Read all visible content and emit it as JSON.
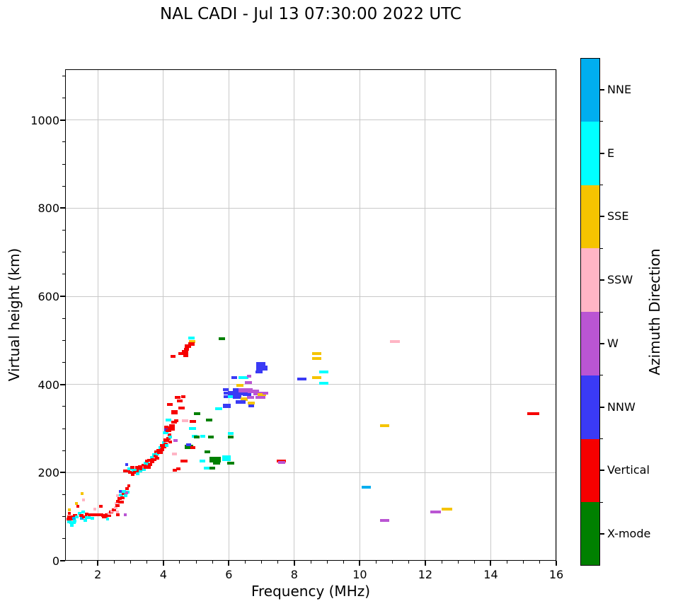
{
  "chart_data": {
    "type": "scatter",
    "title": "NAL CADI - Jul 13 07:30:00 2022 UTC",
    "xlabel": "Frequency (MHz)",
    "ylabel": "Virtual height (km)",
    "xlim": [
      1,
      16
    ],
    "ylim": [
      0,
      1115
    ],
    "x_major_ticks": [
      2,
      4,
      6,
      8,
      10,
      12,
      14,
      16
    ],
    "x_minor_step": 0.5,
    "y_major_ticks": [
      0,
      200,
      400,
      600,
      800,
      1000
    ],
    "y_minor_step": 50,
    "grid": true,
    "grid_color": "#c9c9c9",
    "colorbar": {
      "label": "Azimuth Direction",
      "categories": [
        {
          "key": "x",
          "label": "X-mode",
          "color": "#008000"
        },
        {
          "key": "v",
          "label": "Vertical",
          "color": "#f60000"
        },
        {
          "key": "nnw",
          "label": "NNW",
          "color": "#3a3af5"
        },
        {
          "key": "w",
          "label": "W",
          "color": "#ba55d3"
        },
        {
          "key": "ssw",
          "label": "SSW",
          "color": "#ffb5c5"
        },
        {
          "key": "sse",
          "label": "SSE",
          "color": "#f5c400"
        },
        {
          "key": "e",
          "label": "E",
          "color": "#00ffff"
        },
        {
          "key": "nne",
          "label": "NNE",
          "color": "#00aeef"
        }
      ]
    },
    "points": [
      [
        1.14,
        115,
        "sse",
        4
      ],
      [
        1.14,
        107,
        "v",
        4
      ],
      [
        1.16,
        100,
        "v",
        8
      ],
      [
        1.14,
        94,
        "v",
        9
      ],
      [
        1.12,
        88,
        "e",
        6
      ],
      [
        1.22,
        86,
        "e",
        9
      ],
      [
        1.3,
        90,
        "e",
        5
      ],
      [
        1.28,
        96,
        "nne",
        5
      ],
      [
        1.3,
        103,
        "v",
        6
      ],
      [
        1.36,
        99,
        "e",
        5
      ],
      [
        1.35,
        130,
        "sse",
        4
      ],
      [
        1.38,
        124,
        "v",
        4
      ],
      [
        1.44,
        107,
        "e",
        5
      ],
      [
        1.5,
        103,
        "v",
        6
      ],
      [
        1.5,
        96,
        "nne",
        5
      ],
      [
        1.52,
        152,
        "sse",
        4
      ],
      [
        1.55,
        110,
        "e",
        5
      ],
      [
        1.57,
        138,
        "ssw",
        4
      ],
      [
        1.6,
        100,
        "v",
        7
      ],
      [
        1.62,
        92,
        "e",
        5
      ],
      [
        1.66,
        106,
        "v",
        5
      ],
      [
        1.7,
        98,
        "e",
        8
      ],
      [
        1.74,
        104,
        "v",
        5
      ],
      [
        1.8,
        105,
        "v",
        10
      ],
      [
        1.84,
        96,
        "e",
        5
      ],
      [
        1.9,
        117,
        "ssw",
        4
      ],
      [
        1.94,
        105,
        "v",
        12
      ],
      [
        2.05,
        104,
        "v",
        10
      ],
      [
        2.1,
        123,
        "v",
        5
      ],
      [
        2.16,
        102,
        "v",
        6
      ],
      [
        2.22,
        100,
        "v",
        8
      ],
      [
        2.28,
        104,
        "v",
        6
      ],
      [
        2.33,
        103,
        "v",
        6
      ],
      [
        2.36,
        107,
        "ssw",
        5
      ],
      [
        2.4,
        110,
        "v",
        6
      ],
      [
        2.44,
        112,
        "ssw",
        5
      ],
      [
        2.5,
        115,
        "v",
        6
      ],
      [
        2.54,
        120,
        "ssw",
        5
      ],
      [
        2.56,
        130,
        "ssw",
        5
      ],
      [
        2.6,
        111,
        "ssw",
        4
      ],
      [
        2.6,
        125,
        "v",
        6
      ],
      [
        2.62,
        135,
        "v",
        5
      ],
      [
        2.66,
        141,
        "v",
        6
      ],
      [
        2.6,
        147,
        "ssw",
        4
      ],
      [
        2.7,
        133,
        "v",
        8
      ],
      [
        2.76,
        143,
        "v",
        6
      ],
      [
        2.7,
        150,
        "e",
        6
      ],
      [
        2.78,
        152,
        "v",
        5
      ],
      [
        2.84,
        105,
        "w",
        4
      ],
      [
        2.84,
        148,
        "e",
        5
      ],
      [
        2.88,
        156,
        "e",
        8
      ],
      [
        2.76,
        158,
        "e",
        10
      ],
      [
        2.6,
        104,
        "v",
        5
      ],
      [
        2.3,
        95,
        "e",
        4
      ],
      [
        1.2,
        80,
        "e",
        5
      ],
      [
        2.68,
        157,
        "nnw",
        4
      ],
      [
        2.9,
        163,
        "v",
        5
      ],
      [
        2.94,
        170,
        "v",
        4
      ],
      [
        2.89,
        218,
        "nnw",
        4
      ],
      [
        2.88,
        203,
        "v",
        10
      ],
      [
        2.96,
        208,
        "e",
        6
      ],
      [
        3.0,
        200,
        "v",
        8
      ],
      [
        3.06,
        211,
        "v",
        6
      ],
      [
        3.06,
        195,
        "v",
        5
      ],
      [
        3.12,
        206,
        "e",
        8
      ],
      [
        3.16,
        200,
        "v",
        8
      ],
      [
        3.2,
        211,
        "v",
        6
      ],
      [
        3.22,
        198,
        "e",
        5
      ],
      [
        3.26,
        205,
        "v",
        8
      ],
      [
        3.3,
        213,
        "v",
        6
      ],
      [
        3.3,
        203,
        "e",
        5
      ],
      [
        3.36,
        208,
        "v",
        8
      ],
      [
        3.4,
        216,
        "v",
        6
      ],
      [
        3.42,
        207,
        "e",
        5
      ],
      [
        3.46,
        222,
        "e",
        6
      ],
      [
        3.5,
        214,
        "v",
        10,
        6
      ],
      [
        3.5,
        226,
        "v",
        5
      ],
      [
        3.56,
        220,
        "e",
        6
      ],
      [
        3.6,
        228,
        "v",
        8
      ],
      [
        3.6,
        218,
        "v",
        6
      ],
      [
        3.64,
        235,
        "e",
        5
      ],
      [
        3.66,
        225,
        "v",
        6
      ],
      [
        3.7,
        230,
        "v",
        8
      ],
      [
        3.72,
        240,
        "e",
        5
      ],
      [
        3.76,
        238,
        "v",
        6
      ],
      [
        3.78,
        247,
        "v",
        5
      ],
      [
        3.8,
        232,
        "v",
        6
      ],
      [
        3.82,
        243,
        "e",
        5
      ],
      [
        3.86,
        250,
        "v",
        6
      ],
      [
        3.9,
        245,
        "v",
        8
      ],
      [
        3.9,
        256,
        "e",
        5
      ],
      [
        3.96,
        252,
        "v",
        6
      ],
      [
        3.96,
        262,
        "v",
        5
      ],
      [
        4.0,
        258,
        "v",
        8
      ],
      [
        4.02,
        268,
        "e",
        5
      ],
      [
        4.06,
        265,
        "v",
        6
      ],
      [
        4.06,
        275,
        "v",
        5
      ],
      [
        4.1,
        272,
        "v",
        8
      ],
      [
        4.1,
        262,
        "e",
        5
      ],
      [
        4.16,
        278,
        "v",
        6
      ],
      [
        4.18,
        285,
        "v",
        5
      ],
      [
        4.2,
        270,
        "v",
        5
      ],
      [
        4.22,
        280,
        "e",
        5
      ],
      [
        4.06,
        290,
        "e",
        8
      ],
      [
        4.1,
        297,
        "nnw",
        6
      ],
      [
        4.16,
        295,
        "v",
        8
      ],
      [
        4.2,
        301,
        "v",
        6
      ],
      [
        4.26,
        305,
        "v",
        8,
        6
      ],
      [
        4.3,
        298,
        "v",
        5
      ],
      [
        4.1,
        303,
        "v",
        6
      ],
      [
        4.16,
        320,
        "e",
        8
      ],
      [
        4.4,
        317,
        "v",
        6
      ],
      [
        4.32,
        315,
        "v",
        8
      ],
      [
        4.66,
        318,
        "ssw",
        9
      ],
      [
        4.9,
        316,
        "v",
        9
      ],
      [
        4.33,
        337,
        "v",
        9,
        6
      ],
      [
        4.56,
        346,
        "v",
        9
      ],
      [
        5.03,
        334,
        "x",
        9
      ],
      [
        4.2,
        355,
        "v",
        8
      ],
      [
        4.5,
        363,
        "v",
        8
      ],
      [
        4.44,
        371,
        "v",
        8
      ],
      [
        4.62,
        372,
        "v",
        6
      ],
      [
        4.85,
        505,
        "e",
        9
      ],
      [
        4.87,
        498,
        "sse",
        9
      ],
      [
        4.85,
        491,
        "v",
        9,
        5
      ],
      [
        4.76,
        487,
        "v",
        9,
        5
      ],
      [
        4.7,
        480,
        "v",
        7
      ],
      [
        4.66,
        473,
        "v",
        9,
        6
      ],
      [
        4.68,
        466,
        "v",
        7
      ],
      [
        4.56,
        470,
        "v",
        9
      ],
      [
        4.3,
        463,
        "v",
        7
      ],
      [
        5.78,
        503,
        "x",
        9
      ],
      [
        4.38,
        273,
        "w",
        6
      ],
      [
        4.9,
        300,
        "e",
        10
      ],
      [
        4.96,
        283,
        "e",
        8
      ],
      [
        5.02,
        280,
        "x",
        8
      ],
      [
        5.46,
        281,
        "x",
        8
      ],
      [
        4.78,
        258,
        "x",
        12,
        6
      ],
      [
        4.78,
        263,
        "nnw",
        7
      ],
      [
        4.9,
        257,
        "v",
        7
      ],
      [
        4.33,
        243,
        "ssw",
        7
      ],
      [
        5.35,
        247,
        "x",
        8
      ],
      [
        4.64,
        226,
        "v",
        10
      ],
      [
        5.2,
        226,
        "e",
        8
      ],
      [
        5.58,
        230,
        "x",
        16,
        8
      ],
      [
        5.62,
        222,
        "x",
        10
      ],
      [
        5.32,
        210,
        "e",
        8
      ],
      [
        5.5,
        210,
        "x",
        8
      ],
      [
        5.92,
        232,
        "e",
        12,
        8
      ],
      [
        6.06,
        222,
        "x",
        10
      ],
      [
        4.36,
        206,
        "v",
        6
      ],
      [
        4.46,
        208,
        "v",
        6
      ],
      [
        6.06,
        288,
        "e",
        8
      ],
      [
        6.06,
        280,
        "x",
        8
      ],
      [
        5.4,
        320,
        "x",
        9
      ],
      [
        5.68,
        345,
        "e",
        10
      ],
      [
        5.2,
        283,
        "e",
        7
      ],
      [
        2.88,
        154,
        "w",
        4
      ],
      [
        5.9,
        389,
        "nnw",
        8
      ],
      [
        5.9,
        381,
        "nnw",
        6
      ],
      [
        5.9,
        373,
        "nnw",
        6
      ],
      [
        6.05,
        373,
        "e",
        7
      ],
      [
        5.94,
        351,
        "nnw",
        11,
        6
      ],
      [
        6.12,
        380,
        "nnw",
        14,
        6
      ],
      [
        6.22,
        387,
        "nnw",
        10,
        5
      ],
      [
        6.32,
        380,
        "nnw",
        16,
        6
      ],
      [
        6.26,
        372,
        "nnw",
        12,
        5
      ],
      [
        6.46,
        366,
        "sse",
        10,
        5
      ],
      [
        6.36,
        360,
        "nnw",
        14,
        5
      ],
      [
        6.56,
        378,
        "nnw",
        12,
        5
      ],
      [
        6.52,
        386,
        "w",
        20,
        6
      ],
      [
        6.76,
        384,
        "w",
        16,
        5
      ],
      [
        6.9,
        380,
        "w",
        14,
        5
      ],
      [
        7.0,
        377,
        "sse",
        12,
        4
      ],
      [
        6.96,
        370,
        "w",
        14,
        4
      ],
      [
        6.66,
        370,
        "w",
        10,
        4
      ],
      [
        6.68,
        357,
        "sse",
        10,
        4
      ],
      [
        6.68,
        352,
        "nnw",
        8,
        4
      ],
      [
        7.12,
        381,
        "w",
        8,
        4
      ],
      [
        6.16,
        416,
        "nnw",
        8
      ],
      [
        6.44,
        416,
        "e",
        14
      ],
      [
        6.62,
        419,
        "w",
        6
      ],
      [
        6.6,
        405,
        "w",
        10
      ],
      [
        6.34,
        398,
        "sse",
        10
      ],
      [
        6.98,
        447,
        "nnw",
        13,
        5
      ],
      [
        7.0,
        437,
        "nnw",
        16,
        7
      ],
      [
        6.92,
        429,
        "nnw",
        10,
        4
      ],
      [
        7.6,
        227,
        "v",
        13
      ],
      [
        7.62,
        223,
        "w",
        10
      ],
      [
        8.22,
        412,
        "nnw",
        13
      ],
      [
        8.68,
        415,
        "sse",
        13
      ],
      [
        8.9,
        428,
        "e",
        13
      ],
      [
        8.9,
        403,
        "e",
        13
      ],
      [
        8.68,
        470,
        "sse",
        13
      ],
      [
        8.68,
        459,
        "sse",
        13
      ],
      [
        10.2,
        167,
        "nne",
        13
      ],
      [
        10.76,
        306,
        "sse",
        13
      ],
      [
        11.07,
        497,
        "ssw",
        14
      ],
      [
        10.76,
        92,
        "w",
        13
      ],
      [
        12.32,
        110,
        "w",
        15
      ],
      [
        12.66,
        117,
        "sse",
        15
      ],
      [
        15.3,
        334,
        "v",
        17
      ]
    ]
  }
}
